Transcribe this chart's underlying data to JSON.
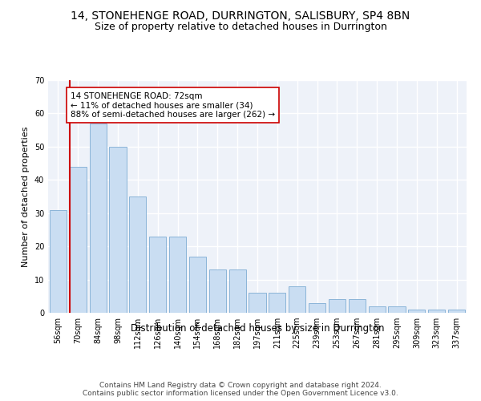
{
  "title": "14, STONEHENGE ROAD, DURRINGTON, SALISBURY, SP4 8BN",
  "subtitle": "Size of property relative to detached houses in Durrington",
  "xlabel": "Distribution of detached houses by size in Durrington",
  "ylabel": "Number of detached properties",
  "categories": [
    "56sqm",
    "70sqm",
    "84sqm",
    "98sqm",
    "112sqm",
    "126sqm",
    "140sqm",
    "154sqm",
    "168sqm",
    "182sqm",
    "197sqm",
    "211sqm",
    "225sqm",
    "239sqm",
    "253sqm",
    "267sqm",
    "281sqm",
    "295sqm",
    "309sqm",
    "323sqm",
    "337sqm"
  ],
  "values": [
    31,
    44,
    57,
    50,
    35,
    23,
    23,
    17,
    13,
    13,
    6,
    6,
    8,
    3,
    4,
    4,
    2,
    2,
    1,
    1,
    1
  ],
  "bar_color": "#c9ddf2",
  "bar_edge_color": "#8ab4d8",
  "highlight_line_color": "#cc0000",
  "annotation_text": "14 STONEHENGE ROAD: 72sqm\n← 11% of detached houses are smaller (34)\n88% of semi-detached houses are larger (262) →",
  "annotation_box_color": "white",
  "annotation_box_edge_color": "#cc0000",
  "ylim": [
    0,
    70
  ],
  "yticks": [
    0,
    10,
    20,
    30,
    40,
    50,
    60,
    70
  ],
  "footer_text": "Contains HM Land Registry data © Crown copyright and database right 2024.\nContains public sector information licensed under the Open Government Licence v3.0.",
  "background_color": "#eef2f9",
  "grid_color": "#ffffff",
  "title_fontsize": 10,
  "subtitle_fontsize": 9,
  "xlabel_fontsize": 8.5,
  "ylabel_fontsize": 8,
  "tick_fontsize": 7,
  "footer_fontsize": 6.5,
  "annotation_fontsize": 7.5
}
